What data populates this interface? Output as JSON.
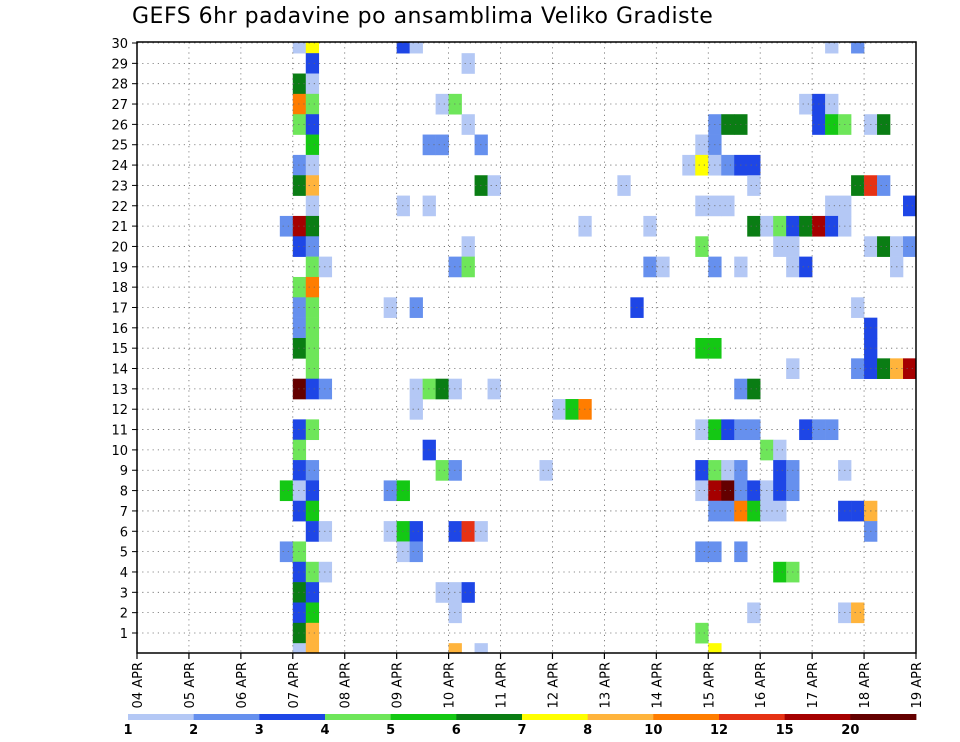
{
  "chart_data": {
    "type": "heatmap",
    "title": "GEFS 6hr padavine po ansamblima Veliko Gradiste",
    "xlabel": "",
    "ylabel": "",
    "x_ticks": [
      "04 APR",
      "05 APR",
      "06 APR",
      "07 APR",
      "08 APR",
      "09 APR",
      "10 APR",
      "11 APR",
      "12 APR",
      "13 APR",
      "14 APR",
      "15 APR",
      "16 APR",
      "17 APR",
      "18 APR",
      "19 APR"
    ],
    "y_ticks": [
      "1",
      "2",
      "3",
      "4",
      "5",
      "6",
      "7",
      "8",
      "9",
      "10",
      "11",
      "12",
      "13",
      "14",
      "15",
      "16",
      "17",
      "18",
      "19",
      "20",
      "21",
      "22",
      "23",
      "24",
      "25",
      "26",
      "27",
      "28",
      "29",
      "30"
    ],
    "step_hours": 6,
    "member_range": [
      1,
      30
    ],
    "grid": "dotted",
    "legend": {
      "placement": "bottom",
      "colors": [
        "#b4c8f5",
        "#6690ee",
        "#1e46e6",
        "#6ee65a",
        "#14c814",
        "#0a7d14",
        "#ffff00",
        "#ffb43c",
        "#ff7d00",
        "#e63214",
        "#a50000",
        "#640000"
      ],
      "labels": [
        "1",
        "2",
        "3",
        "4",
        "5",
        "6",
        "7",
        "8",
        "10",
        "12",
        "15",
        "20"
      ]
    },
    "cell_value_unit": "color class 1-12 (per legend)",
    "cells": [
      [
        30,
        12,
        1
      ],
      [
        30,
        13,
        7
      ],
      [
        30,
        20,
        3
      ],
      [
        30,
        21,
        1
      ],
      [
        30,
        53,
        1
      ],
      [
        30,
        55,
        2
      ],
      [
        29,
        13,
        3
      ],
      [
        29,
        25,
        1
      ],
      [
        28,
        12,
        6
      ],
      [
        28,
        13,
        1
      ],
      [
        27,
        12,
        9
      ],
      [
        27,
        13,
        4
      ],
      [
        27,
        23,
        1
      ],
      [
        27,
        24,
        4
      ],
      [
        27,
        51,
        1
      ],
      [
        27,
        52,
        3
      ],
      [
        27,
        53,
        1
      ],
      [
        26,
        12,
        4
      ],
      [
        26,
        13,
        3
      ],
      [
        26,
        25,
        1
      ],
      [
        26,
        44,
        2
      ],
      [
        26,
        45,
        6
      ],
      [
        26,
        46,
        6
      ],
      [
        26,
        52,
        3
      ],
      [
        26,
        53,
        5
      ],
      [
        26,
        54,
        4
      ],
      [
        26,
        56,
        1
      ],
      [
        26,
        57,
        6
      ],
      [
        25,
        13,
        5
      ],
      [
        25,
        22,
        2
      ],
      [
        25,
        23,
        2
      ],
      [
        25,
        26,
        2
      ],
      [
        25,
        43,
        1
      ],
      [
        25,
        44,
        2
      ],
      [
        24,
        12,
        2
      ],
      [
        24,
        13,
        1
      ],
      [
        24,
        42,
        1
      ],
      [
        24,
        43,
        7
      ],
      [
        24,
        44,
        1
      ],
      [
        24,
        45,
        2
      ],
      [
        24,
        46,
        3
      ],
      [
        24,
        47,
        3
      ],
      [
        23,
        12,
        6
      ],
      [
        23,
        13,
        8
      ],
      [
        23,
        26,
        6
      ],
      [
        23,
        27,
        1
      ],
      [
        23,
        37,
        1
      ],
      [
        23,
        47,
        1
      ],
      [
        23,
        55,
        6
      ],
      [
        23,
        56,
        10
      ],
      [
        23,
        57,
        2
      ],
      [
        22,
        13,
        1
      ],
      [
        22,
        20,
        1
      ],
      [
        22,
        22,
        1
      ],
      [
        22,
        43,
        1
      ],
      [
        22,
        44,
        1
      ],
      [
        22,
        45,
        1
      ],
      [
        22,
        53,
        1
      ],
      [
        22,
        54,
        1
      ],
      [
        22,
        59,
        3
      ],
      [
        21,
        11,
        2
      ],
      [
        21,
        12,
        11
      ],
      [
        21,
        13,
        6
      ],
      [
        21,
        34,
        1
      ],
      [
        21,
        39,
        1
      ],
      [
        21,
        47,
        6
      ],
      [
        21,
        48,
        1
      ],
      [
        21,
        49,
        4
      ],
      [
        21,
        50,
        3
      ],
      [
        21,
        51,
        6
      ],
      [
        21,
        52,
        11
      ],
      [
        21,
        53,
        3
      ],
      [
        21,
        54,
        1
      ],
      [
        20,
        12,
        3
      ],
      [
        20,
        13,
        2
      ],
      [
        20,
        25,
        1
      ],
      [
        20,
        43,
        4
      ],
      [
        20,
        49,
        1
      ],
      [
        20,
        50,
        1
      ],
      [
        20,
        56,
        1
      ],
      [
        20,
        57,
        6
      ],
      [
        20,
        58,
        1
      ],
      [
        20,
        59,
        2
      ],
      [
        19,
        13,
        4
      ],
      [
        19,
        14,
        1
      ],
      [
        19,
        24,
        2
      ],
      [
        19,
        25,
        4
      ],
      [
        19,
        39,
        2
      ],
      [
        19,
        40,
        1
      ],
      [
        19,
        44,
        2
      ],
      [
        19,
        46,
        1
      ],
      [
        19,
        50,
        1
      ],
      [
        19,
        51,
        3
      ],
      [
        19,
        58,
        1
      ],
      [
        18,
        12,
        4
      ],
      [
        18,
        13,
        9
      ],
      [
        17,
        12,
        2
      ],
      [
        17,
        13,
        4
      ],
      [
        17,
        19,
        1
      ],
      [
        17,
        21,
        2
      ],
      [
        17,
        38,
        3
      ],
      [
        17,
        55,
        1
      ],
      [
        16,
        12,
        2
      ],
      [
        16,
        13,
        4
      ],
      [
        16,
        56,
        3
      ],
      [
        15,
        12,
        6
      ],
      [
        15,
        13,
        4
      ],
      [
        15,
        43,
        5
      ],
      [
        15,
        44,
        5
      ],
      [
        15,
        56,
        3
      ],
      [
        14,
        13,
        4
      ],
      [
        14,
        50,
        1
      ],
      [
        14,
        55,
        2
      ],
      [
        14,
        56,
        3
      ],
      [
        14,
        57,
        6
      ],
      [
        14,
        58,
        8
      ],
      [
        14,
        59,
        11
      ],
      [
        13,
        12,
        12
      ],
      [
        13,
        13,
        3
      ],
      [
        13,
        14,
        2
      ],
      [
        13,
        21,
        1
      ],
      [
        13,
        22,
        4
      ],
      [
        13,
        23,
        6
      ],
      [
        13,
        24,
        1
      ],
      [
        13,
        27,
        1
      ],
      [
        13,
        46,
        2
      ],
      [
        13,
        47,
        6
      ],
      [
        12,
        21,
        1
      ],
      [
        12,
        32,
        1
      ],
      [
        12,
        33,
        5
      ],
      [
        12,
        34,
        9
      ],
      [
        11,
        12,
        3
      ],
      [
        11,
        13,
        4
      ],
      [
        11,
        43,
        1
      ],
      [
        11,
        44,
        5
      ],
      [
        11,
        45,
        3
      ],
      [
        11,
        46,
        2
      ],
      [
        11,
        47,
        2
      ],
      [
        11,
        51,
        3
      ],
      [
        11,
        52,
        2
      ],
      [
        11,
        53,
        2
      ],
      [
        10,
        12,
        4
      ],
      [
        10,
        22,
        3
      ],
      [
        10,
        48,
        4
      ],
      [
        10,
        49,
        1
      ],
      [
        9,
        12,
        3
      ],
      [
        9,
        13,
        2
      ],
      [
        9,
        23,
        4
      ],
      [
        9,
        24,
        2
      ],
      [
        9,
        31,
        1
      ],
      [
        9,
        43,
        3
      ],
      [
        9,
        44,
        4
      ],
      [
        9,
        45,
        1
      ],
      [
        9,
        46,
        2
      ],
      [
        9,
        49,
        3
      ],
      [
        9,
        50,
        2
      ],
      [
        9,
        54,
        1
      ],
      [
        8,
        11,
        5
      ],
      [
        8,
        12,
        1
      ],
      [
        8,
        13,
        3
      ],
      [
        8,
        19,
        2
      ],
      [
        8,
        20,
        5
      ],
      [
        8,
        43,
        1
      ],
      [
        8,
        44,
        11
      ],
      [
        8,
        45,
        12
      ],
      [
        8,
        46,
        2
      ],
      [
        8,
        47,
        3
      ],
      [
        8,
        48,
        1
      ],
      [
        8,
        49,
        3
      ],
      [
        8,
        50,
        2
      ],
      [
        7,
        12,
        3
      ],
      [
        7,
        13,
        5
      ],
      [
        7,
        44,
        2
      ],
      [
        7,
        45,
        2
      ],
      [
        7,
        46,
        9
      ],
      [
        7,
        47,
        5
      ],
      [
        7,
        48,
        1
      ],
      [
        7,
        49,
        1
      ],
      [
        7,
        54,
        3
      ],
      [
        7,
        55,
        3
      ],
      [
        7,
        56,
        8
      ],
      [
        6,
        13,
        3
      ],
      [
        6,
        14,
        1
      ],
      [
        6,
        19,
        1
      ],
      [
        6,
        20,
        5
      ],
      [
        6,
        21,
        3
      ],
      [
        6,
        24,
        3
      ],
      [
        6,
        25,
        10
      ],
      [
        6,
        26,
        1
      ],
      [
        6,
        56,
        2
      ],
      [
        5,
        11,
        2
      ],
      [
        5,
        12,
        4
      ],
      [
        5,
        20,
        1
      ],
      [
        5,
        21,
        2
      ],
      [
        5,
        43,
        2
      ],
      [
        5,
        44,
        2
      ],
      [
        5,
        46,
        2
      ],
      [
        4,
        12,
        3
      ],
      [
        4,
        13,
        4
      ],
      [
        4,
        14,
        1
      ],
      [
        4,
        49,
        5
      ],
      [
        4,
        50,
        4
      ],
      [
        3,
        12,
        6
      ],
      [
        3,
        13,
        3
      ],
      [
        3,
        23,
        1
      ],
      [
        3,
        24,
        1
      ],
      [
        3,
        25,
        3
      ],
      [
        2,
        12,
        3
      ],
      [
        2,
        13,
        5
      ],
      [
        2,
        24,
        1
      ],
      [
        2,
        47,
        1
      ],
      [
        2,
        54,
        1
      ],
      [
        2,
        55,
        8
      ],
      [
        1,
        12,
        6
      ],
      [
        1,
        13,
        8
      ],
      [
        1,
        43,
        4
      ],
      [
        0,
        12,
        1
      ],
      [
        0,
        13,
        8
      ],
      [
        0,
        24,
        8
      ],
      [
        0,
        26,
        1
      ],
      [
        0,
        44,
        7
      ]
    ]
  }
}
